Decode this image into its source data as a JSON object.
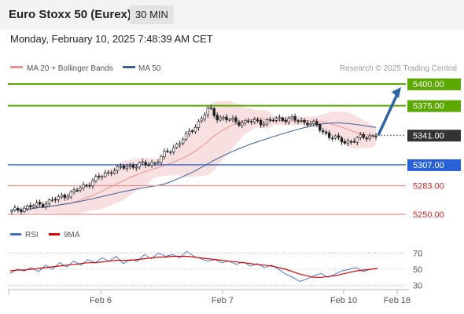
{
  "header": {
    "title": "Euro Stoxx 50 (Eurex)",
    "interval": "30 MIN",
    "datetime": "Monday, February 10, 2025 7:48:39 AM CET"
  },
  "legend": {
    "ma20_label": "MA 20 + Bollinger Bands",
    "ma50_label": "MA 50",
    "rsi_label": "RSI",
    "ma9_label": "9MA",
    "credit": "Research © 2025 Trading Central"
  },
  "colors": {
    "candle": "#222222",
    "ma20_band": "#f4c6c6",
    "ma20_line": "#f08f8f",
    "ma50_line": "#3a5e9a",
    "resistance": "#5aa800",
    "support_blue": "#2962d6",
    "support_red": "#f08f8f",
    "last_price": "#333333",
    "arrow": "#2f63a3",
    "rsi_line": "#3f6fc0",
    "rsi_ma": "#e00000"
  },
  "chart_data": [
    {
      "type": "candlestick",
      "x_ticks": [
        "Feb 6",
        "Feb 7",
        "Feb 10",
        "Feb 18"
      ],
      "ylim": [
        5242,
        5410
      ],
      "levels": [
        {
          "value": 5400.0,
          "label": "5400.00",
          "style": "resistance"
        },
        {
          "value": 5375.0,
          "label": "5375.00",
          "style": "resistance"
        },
        {
          "value": 5341.0,
          "label": "5341.00",
          "style": "last_price"
        },
        {
          "value": 5307.0,
          "label": "5307.00",
          "style": "support_blue"
        },
        {
          "value": 5283.0,
          "label": "5283.00",
          "style": "support_red"
        },
        {
          "value": 5250.0,
          "label": "5250.00",
          "style": "support_red"
        }
      ],
      "close_path": [
        5253,
        5256,
        5258,
        5260,
        5262,
        5265,
        5268,
        5272,
        5275,
        5280,
        5285,
        5290,
        5295,
        5300,
        5302,
        5305,
        5306,
        5307,
        5308,
        5310,
        5318,
        5325,
        5332,
        5340,
        5350,
        5360,
        5372,
        5362,
        5360,
        5358,
        5356,
        5356,
        5357,
        5356,
        5357,
        5360,
        5360,
        5359,
        5357,
        5356,
        5353,
        5345,
        5340,
        5336,
        5333,
        5335,
        5338,
        5340,
        5341
      ],
      "forecast_target": 5400.0
    },
    {
      "type": "line",
      "name": "RSI",
      "ylim": [
        20,
        80
      ],
      "y_ticks": [
        70,
        50,
        30
      ],
      "rsi": [
        45,
        50,
        48,
        52,
        47,
        55,
        50,
        58,
        53,
        60,
        55,
        62,
        58,
        64,
        60,
        66,
        57,
        62,
        60,
        68,
        63,
        70,
        66,
        68,
        64,
        72,
        66,
        63,
        60,
        62,
        58,
        60,
        56,
        59,
        54,
        57,
        52,
        55,
        50,
        44,
        40,
        35,
        38,
        42,
        45,
        40,
        44,
        48,
        50,
        52,
        47,
        50,
        51
      ],
      "rsi_ma": [
        48,
        49,
        49,
        50,
        51,
        52,
        53,
        54,
        55,
        56,
        57,
        58,
        58,
        59,
        60,
        61,
        61,
        61,
        62,
        63,
        64,
        65,
        65,
        66,
        66,
        66,
        65,
        64,
        63,
        62,
        61,
        60,
        59,
        58,
        57,
        56,
        55,
        54,
        52,
        50,
        47,
        44,
        42,
        40,
        40,
        41,
        42,
        44,
        46,
        48,
        49,
        50,
        51
      ]
    }
  ]
}
